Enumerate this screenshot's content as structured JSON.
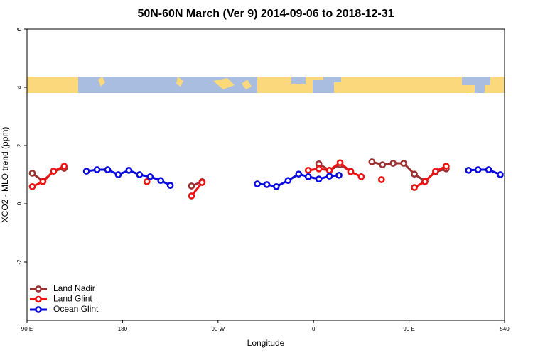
{
  "chart_data": {
    "type": "line",
    "title": "50N-60N March (Ver 9)   2014-09-06 to 2018-12-31",
    "x_label": "Longitude",
    "y_label": "XCO2 - MLO trend (ppm)",
    "xlim": [
      90,
      540
    ],
    "xticks": [
      {
        "value": 90,
        "label": "90 E"
      },
      180,
      {
        "value": 270,
        "label": "90 W"
      },
      {
        "value": 360,
        "label": "0"
      },
      {
        "value": 450,
        "label": "90 E"
      },
      540
    ],
    "ylim": [
      -4,
      6
    ],
    "yticks": [
      -2,
      0,
      2,
      4,
      6
    ],
    "legend": "bottom-left",
    "series": [
      {
        "name": "Land Nadir",
        "color": "#9c2f2f",
        "x": [
          95,
          105,
          115,
          125,
          null,
          245,
          255,
          null,
          365,
          375,
          385,
          395,
          null,
          415,
          425,
          435,
          445,
          455,
          465,
          475,
          485
        ],
        "values": [
          1.05,
          0.78,
          1.12,
          1.22,
          null,
          0.61,
          0.76,
          null,
          1.37,
          1.15,
          1.34,
          1.12,
          null,
          1.44,
          1.34,
          1.39,
          1.39,
          1.02,
          0.78,
          1.1,
          1.2
        ]
      },
      {
        "name": "Land Glint",
        "color": "#ee1111",
        "x": [
          95,
          105,
          115,
          125,
          null,
          203,
          null,
          245,
          255,
          null,
          355,
          365,
          375,
          385,
          395,
          405,
          null,
          424,
          null,
          455,
          465,
          475,
          485
        ],
        "values": [
          0.59,
          0.76,
          1.12,
          1.29,
          null,
          0.76,
          null,
          0.27,
          0.73,
          null,
          1.15,
          1.2,
          1.15,
          1.41,
          1.1,
          0.93,
          null,
          0.83,
          null,
          0.56,
          0.76,
          1.12,
          1.29
        ]
      },
      {
        "name": "Ocean Glint",
        "color": "#0a0ae0",
        "x": [
          146,
          156,
          166,
          176,
          186,
          196,
          206,
          216,
          225,
          null,
          307,
          316,
          325,
          336,
          346,
          355,
          365,
          375,
          384,
          null,
          506,
          515,
          525,
          536
        ],
        "values": [
          1.12,
          1.17,
          1.17,
          1.0,
          1.15,
          1.0,
          0.93,
          0.8,
          0.63,
          null,
          0.68,
          0.66,
          0.59,
          0.8,
          1.02,
          0.93,
          0.85,
          0.95,
          0.98,
          null,
          1.15,
          1.17,
          1.17,
          1.0
        ]
      }
    ]
  }
}
